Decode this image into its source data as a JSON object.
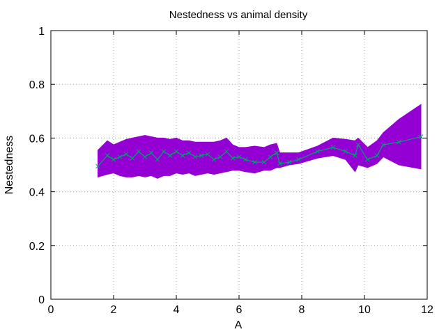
{
  "chart_data": {
    "type": "line",
    "title": "Nestedness vs animal density",
    "xlabel": "A",
    "ylabel": "Nestedness",
    "xlim": [
      0,
      12
    ],
    "ylim": [
      0,
      1
    ],
    "xticks": [
      "0",
      "2",
      "4",
      "6",
      "8",
      "10",
      "12"
    ],
    "yticks": [
      "0",
      "0.2",
      "0.4",
      "0.6",
      "0.8",
      "1"
    ],
    "grid": true,
    "legend": "none",
    "colors": {
      "band": "#9400d3",
      "line": "#009e73"
    },
    "series": [
      {
        "x": [
          1.5,
          1.8,
          2.0,
          2.2,
          2.4,
          2.6,
          2.8,
          3.0,
          3.2,
          3.4,
          3.6,
          3.8,
          4.0,
          4.2,
          4.4,
          4.6,
          4.8,
          5.0,
          5.2,
          5.4,
          5.6,
          5.8,
          6.0,
          6.2,
          6.5,
          6.8,
          7.0,
          7.2,
          7.3,
          7.6,
          7.9,
          8.5,
          9.0,
          9.4,
          9.7,
          9.8,
          10.1,
          10.4,
          10.6,
          11.1,
          11.8
        ],
        "y": [
          0.495,
          0.535,
          0.52,
          0.53,
          0.54,
          0.525,
          0.55,
          0.53,
          0.545,
          0.52,
          0.55,
          0.535,
          0.55,
          0.535,
          0.545,
          0.53,
          0.535,
          0.54,
          0.52,
          0.53,
          0.55,
          0.525,
          0.53,
          0.52,
          0.51,
          0.51,
          0.53,
          0.545,
          0.505,
          0.51,
          0.52,
          0.55,
          0.565,
          0.55,
          0.535,
          0.575,
          0.52,
          0.535,
          0.575,
          0.585,
          0.605
        ],
        "y_lower": [
          0.455,
          0.465,
          0.47,
          0.46,
          0.455,
          0.455,
          0.46,
          0.455,
          0.46,
          0.45,
          0.46,
          0.46,
          0.47,
          0.465,
          0.47,
          0.46,
          0.465,
          0.47,
          0.465,
          0.47,
          0.475,
          0.48,
          0.48,
          0.475,
          0.47,
          0.48,
          0.48,
          0.49,
          0.49,
          0.5,
          0.505,
          0.525,
          0.535,
          0.52,
          0.475,
          0.5,
          0.49,
          0.505,
          0.53,
          0.5,
          0.485
        ],
        "y_upper": [
          0.555,
          0.59,
          0.575,
          0.585,
          0.595,
          0.6,
          0.605,
          0.61,
          0.605,
          0.6,
          0.6,
          0.595,
          0.6,
          0.59,
          0.59,
          0.585,
          0.585,
          0.585,
          0.585,
          0.59,
          0.6,
          0.575,
          0.565,
          0.565,
          0.57,
          0.565,
          0.575,
          0.58,
          0.545,
          0.545,
          0.545,
          0.57,
          0.6,
          0.595,
          0.59,
          0.6,
          0.565,
          0.59,
          0.62,
          0.67,
          0.725
        ]
      }
    ]
  }
}
